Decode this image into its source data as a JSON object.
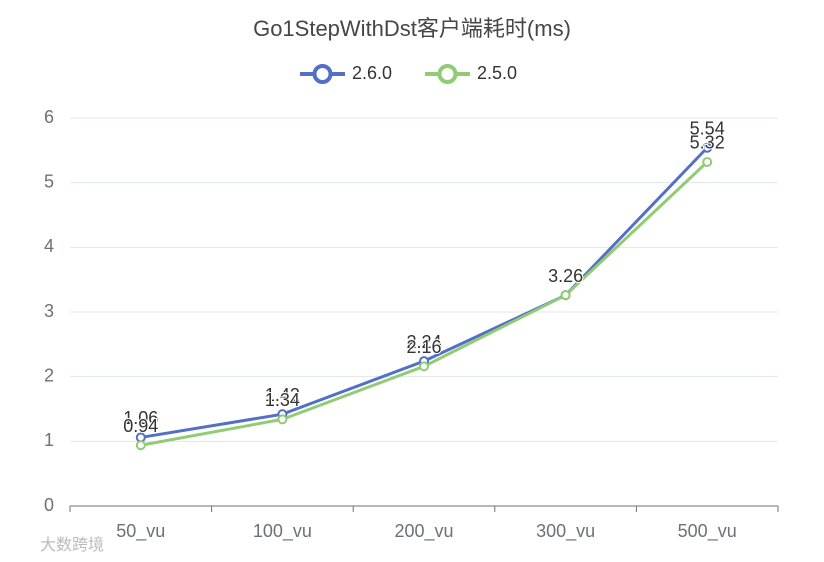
{
  "chart_data": {
    "type": "line",
    "title": "Go1StepWithDst客户端耗时(ms)",
    "categories": [
      "50_vu",
      "100_vu",
      "200_vu",
      "300_vu",
      "500_vu"
    ],
    "series": [
      {
        "name": "2.6.0",
        "color": "#5470c6",
        "values": [
          1.06,
          1.42,
          2.24,
          3.26,
          5.54
        ]
      },
      {
        "name": "2.5.0",
        "color": "#91cc75",
        "values": [
          0.94,
          1.34,
          2.16,
          3.26,
          5.32
        ]
      }
    ],
    "ylim": [
      0,
      6
    ],
    "yticks": [
      0,
      1,
      2,
      3,
      4,
      5,
      6
    ],
    "grid": true,
    "legend": "top",
    "watermark": "大数跨境"
  }
}
